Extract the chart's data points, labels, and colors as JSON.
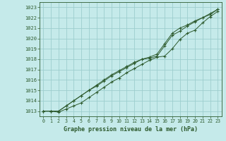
{
  "title": "Graphe pression niveau de la mer (hPa)",
  "background_color": "#c5eaea",
  "grid_color": "#9dcece",
  "line_color": "#2d5a2d",
  "xlim": [
    -0.5,
    23.5
  ],
  "ylim": [
    1012.5,
    1023.5
  ],
  "xticks": [
    0,
    1,
    2,
    3,
    4,
    5,
    6,
    7,
    8,
    9,
    10,
    11,
    12,
    13,
    14,
    15,
    16,
    17,
    18,
    19,
    20,
    21,
    22,
    23
  ],
  "yticks": [
    1013,
    1014,
    1015,
    1016,
    1017,
    1018,
    1019,
    1020,
    1021,
    1022,
    1023
  ],
  "series": [
    [
      1013.0,
      1013.0,
      1012.9,
      1013.2,
      1013.5,
      1013.8,
      1014.3,
      1014.8,
      1015.3,
      1015.8,
      1016.2,
      1016.7,
      1017.1,
      1017.5,
      1017.9,
      1018.2,
      1018.3,
      1019.0,
      1019.9,
      1020.5,
      1020.8,
      1021.5,
      1022.1,
      1022.6
    ],
    [
      1013.0,
      1013.0,
      1013.0,
      1013.5,
      1014.0,
      1014.5,
      1015.0,
      1015.4,
      1015.9,
      1016.4,
      1016.8,
      1017.2,
      1017.6,
      1018.0,
      1018.1,
      1018.3,
      1019.3,
      1020.3,
      1020.7,
      1021.2,
      1021.6,
      1022.0,
      1022.3,
      1022.8
    ],
    [
      1013.0,
      1013.0,
      1013.0,
      1013.5,
      1014.0,
      1014.5,
      1015.0,
      1015.5,
      1016.0,
      1016.5,
      1016.9,
      1017.3,
      1017.7,
      1018.0,
      1018.2,
      1018.5,
      1019.5,
      1020.5,
      1021.0,
      1021.3,
      1021.7,
      1022.0,
      1022.4,
      1022.8
    ]
  ]
}
